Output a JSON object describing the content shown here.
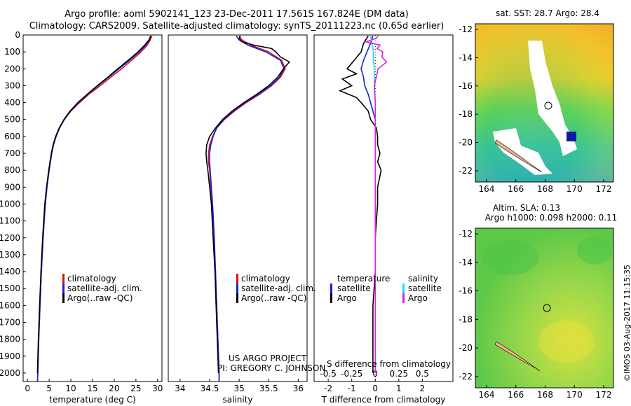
{
  "header": {
    "line1": "Argo profile: aoml 5902141_123 23-Dec-2011 17.561S 167.824E (DM data)",
    "line2": "Climatology: CARS2009. Satellite-adjusted climatology: synTS_20111223.nc (0.65d earlier)"
  },
  "colors": {
    "clim": "#e01010",
    "sat": "#1020e0",
    "argo": "#000000",
    "satS": "#20e0e0",
    "argoS": "#e020e0"
  },
  "depth_ticks": [
    0,
    100,
    200,
    300,
    400,
    500,
    600,
    700,
    800,
    900,
    1000,
    1100,
    1200,
    1300,
    1400,
    1500,
    1600,
    1700,
    1800,
    1900,
    2000
  ],
  "chart_data": [
    {
      "type": "line",
      "id": "temperature",
      "xlabel": "temperature (deg C)",
      "xlim": [
        -1,
        31
      ],
      "ylim": [
        2050,
        0
      ],
      "xticks": [
        0,
        5,
        10,
        15,
        20,
        25,
        30
      ],
      "legend": [
        "climatology",
        "satellite-adj. clim.",
        "Argo(..raw -QC)"
      ],
      "series": [
        {
          "name": "climatology",
          "color": "#e01010",
          "depth": [
            5,
            30,
            60,
            100,
            150,
            200,
            250,
            300,
            350,
            400,
            450,
            500,
            550,
            600,
            650,
            700,
            800,
            900,
            1000,
            1200,
            1400,
            1600,
            1800,
            2000,
            2050
          ],
          "values": [
            28.7,
            28.3,
            27.6,
            26.2,
            24.0,
            21.7,
            19.2,
            16.8,
            14.2,
            12.0,
            10.0,
            8.5,
            7.4,
            6.6,
            6.0,
            5.6,
            5.0,
            4.5,
            4.1,
            3.6,
            3.2,
            2.9,
            2.6,
            2.4,
            2.3
          ]
        },
        {
          "name": "satellite-adj. clim.",
          "color": "#1020e0",
          "depth": [
            5,
            30,
            60,
            100,
            150,
            200,
            250,
            300,
            350,
            400,
            450,
            500,
            550,
            600,
            650,
            700,
            800,
            900,
            1000,
            1200,
            1400,
            1600,
            1800,
            2000,
            2050
          ],
          "values": [
            28.4,
            28.1,
            27.3,
            25.8,
            23.5,
            21.1,
            18.7,
            16.3,
            13.9,
            11.8,
            9.9,
            8.5,
            7.4,
            6.6,
            6.0,
            5.6,
            5.0,
            4.5,
            4.1,
            3.6,
            3.2,
            2.9,
            2.6,
            2.4,
            2.3
          ]
        },
        {
          "name": "Argo(..raw -QC)",
          "color": "#000000",
          "depth": [
            5,
            30,
            60,
            100,
            150,
            200,
            250,
            300,
            350,
            400,
            450,
            500,
            550,
            600,
            650,
            700,
            800,
            900,
            1000,
            1200,
            1400,
            1600,
            1800,
            2000
          ],
          "values": [
            28.4,
            28.0,
            27.0,
            25.5,
            23.2,
            20.8,
            18.5,
            16.1,
            13.8,
            11.6,
            9.8,
            8.4,
            7.3,
            6.5,
            5.9,
            5.5,
            4.9,
            4.4,
            4.0,
            3.5,
            3.1,
            2.8,
            2.5,
            2.3
          ]
        }
      ]
    },
    {
      "type": "line",
      "id": "salinity",
      "xlabel": "salinity",
      "xlim": [
        33.8,
        36.15
      ],
      "ylim": [
        2050,
        0
      ],
      "xticks": [
        34,
        34.5,
        35,
        35.5,
        36
      ],
      "legend": [
        "climatology",
        "satellite-adj. clim.",
        "Argo(..raw -QC)"
      ],
      "series": [
        {
          "name": "climatology",
          "color": "#e01010",
          "depth": [
            5,
            30,
            60,
            100,
            150,
            200,
            250,
            300,
            350,
            400,
            450,
            500,
            550,
            600,
            650,
            700,
            750,
            800,
            900,
            1000,
            1200,
            1400,
            1600,
            1800,
            2000,
            2050
          ],
          "values": [
            35.0,
            35.05,
            35.2,
            35.5,
            35.72,
            35.78,
            35.7,
            35.55,
            35.35,
            35.12,
            34.92,
            34.75,
            34.62,
            34.55,
            34.5,
            34.48,
            34.48,
            34.5,
            34.52,
            34.54,
            34.57,
            34.6,
            34.62,
            34.64,
            34.66,
            34.66
          ]
        },
        {
          "name": "satellite-adj. clim.",
          "color": "#1020e0",
          "depth": [
            5,
            30,
            60,
            100,
            150,
            200,
            250,
            300,
            350,
            400,
            450,
            500,
            550,
            600,
            650,
            700,
            750,
            800,
            900,
            1000,
            1200,
            1400,
            1600,
            1800,
            2000,
            2050
          ],
          "values": [
            34.95,
            35.0,
            35.15,
            35.45,
            35.7,
            35.76,
            35.68,
            35.53,
            35.33,
            35.1,
            34.9,
            34.74,
            34.62,
            34.56,
            34.52,
            34.5,
            34.5,
            34.51,
            34.53,
            34.55,
            34.58,
            34.6,
            34.62,
            34.64,
            34.66,
            34.66
          ]
        },
        {
          "name": "Argo(..raw -QC)",
          "color": "#000000",
          "depth": [
            5,
            20,
            40,
            60,
            80,
            100,
            130,
            160,
            200,
            250,
            300,
            350,
            400,
            450,
            500,
            550,
            600,
            650,
            700,
            750,
            800,
            900,
            1000,
            1200,
            1400,
            1600,
            1800,
            2000
          ],
          "values": [
            35.02,
            35.0,
            35.05,
            35.25,
            35.55,
            35.62,
            35.7,
            35.85,
            35.75,
            35.65,
            35.5,
            35.3,
            35.08,
            34.88,
            34.72,
            34.6,
            34.5,
            34.45,
            34.44,
            34.45,
            34.47,
            34.5,
            34.53,
            34.56,
            34.59,
            34.61,
            34.63,
            34.65
          ]
        }
      ]
    },
    {
      "type": "line",
      "id": "difference",
      "xlabel": "T difference from climatology",
      "xlabel2": "S difference from climatology",
      "xlim": [
        -2.6,
        3.3
      ],
      "ylim": [
        2050,
        0
      ],
      "xticks": [
        -2,
        -1,
        0,
        1,
        2
      ],
      "xticks2": [
        "-0.5",
        "-0.25",
        "0",
        "0.25",
        "0.5"
      ],
      "legend_t": {
        "title": "temperature",
        "items": [
          "satellite",
          "Argo"
        ]
      },
      "legend_s": {
        "title": "salinity",
        "items": [
          "satellite",
          "Argo"
        ]
      },
      "series": [
        {
          "name": "T satellite",
          "color": "#1020e0",
          "depth": [
            5,
            50,
            100,
            150,
            200,
            250,
            300,
            350,
            400,
            450,
            500,
            600,
            700,
            800,
            1000,
            1500,
            2000
          ],
          "values": [
            -0.1,
            -0.2,
            -0.35,
            -0.5,
            -0.6,
            -0.5,
            -0.45,
            -0.3,
            -0.2,
            -0.1,
            0,
            0,
            0,
            0,
            0,
            0,
            0
          ]
        },
        {
          "name": "T Argo",
          "color": "#000000",
          "depth": [
            5,
            50,
            100,
            150,
            200,
            230,
            260,
            300,
            330,
            370,
            400,
            450,
            500,
            550,
            600,
            650,
            700,
            750,
            800,
            900,
            1000,
            1100,
            1200,
            1400,
            1600,
            1800,
            2000
          ],
          "values": [
            -0.3,
            -0.5,
            -0.6,
            -0.9,
            -1.2,
            -0.8,
            -1.4,
            -1.0,
            -1.5,
            -0.8,
            -0.6,
            -0.3,
            -0.2,
            0.05,
            0.1,
            0.1,
            0.2,
            0.1,
            0.25,
            0.1,
            0.1,
            0.05,
            0.0,
            0.0,
            -0.1,
            -0.1,
            -0.1
          ]
        },
        {
          "name": "S satellite",
          "color": "#20e0e0",
          "depth": [
            5,
            30,
            60,
            100,
            150,
            200,
            300,
            400,
            500,
            700,
            1000,
            1500,
            2000
          ],
          "values": [
            -0.05,
            -0.04,
            -0.03,
            -0.02,
            -0.02,
            -0.01,
            -0.01,
            0,
            0,
            0,
            0,
            0,
            0
          ]
        },
        {
          "name": "S Argo",
          "color": "#e020e0",
          "depth": [
            5,
            20,
            40,
            60,
            80,
            100,
            130,
            160,
            200,
            300,
            400,
            500,
            700,
            1000,
            1500,
            2000
          ],
          "values": [
            0.03,
            0.01,
            -0.1,
            0.05,
            0.02,
            0.08,
            0.07,
            0.12,
            0.03,
            -0.01,
            0.0,
            0.0,
            0.0,
            0.0,
            0.0,
            0.0
          ]
        }
      ]
    }
  ],
  "maps": {
    "top_title": "sat. SST: 28.7  Argo: 28.4",
    "bottom_title1": "Altim. SLA: 0.13",
    "bottom_title2": "Argo h1000: 0.098  h2000: 0.11",
    "lat_ticks": [
      "-12",
      "-14",
      "-16",
      "-18",
      "-20",
      "-22"
    ],
    "lon_ticks": [
      "164",
      "166",
      "168",
      "170",
      "172"
    ]
  },
  "text": {
    "project": "US ARGO PROJECT",
    "pi": "PI: GREGORY C. JOHNSON",
    "stamp": "©IMOS 03-Aug-2017 11:15:35"
  }
}
